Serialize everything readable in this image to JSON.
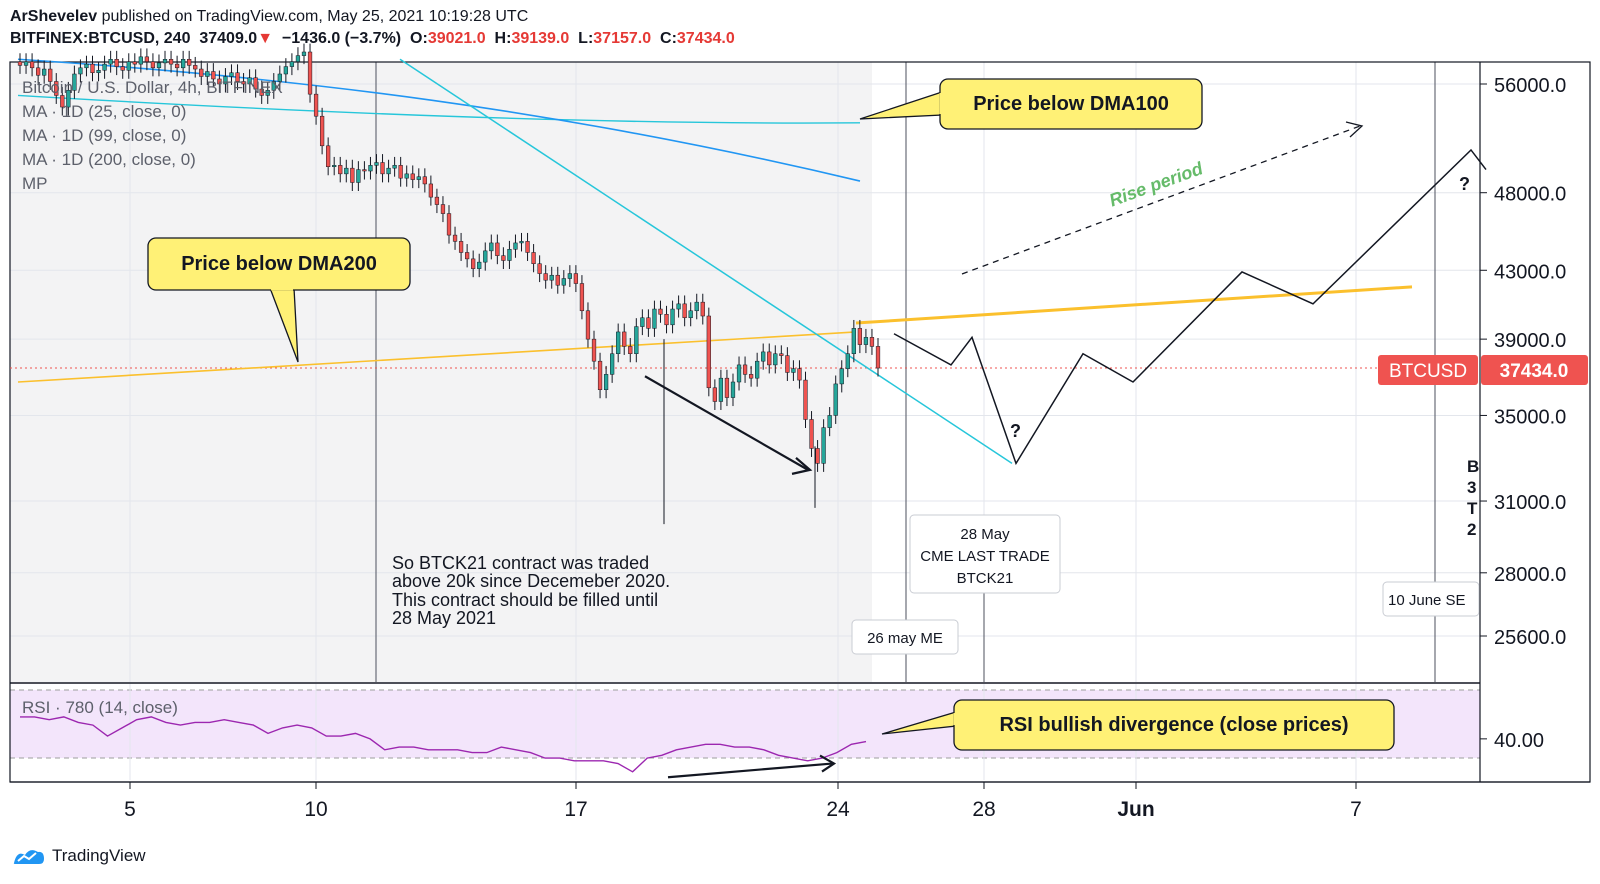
{
  "header": {
    "author": "ArShevelev",
    "published_text": "published on TradingView.com, May 25, 2021 10:19:28 UTC",
    "symbol": "BITFINEX:BTCUSD, 240",
    "last": "37409.0",
    "change_arrow": "▼",
    "change": "−1436.0 (−3.7%)",
    "o_label": "O:",
    "o": "39021.0",
    "h_label": "H:",
    "h": "39139.0",
    "l_label": "L:",
    "l": "37157.0",
    "c_label": "C:",
    "c": "37434.0"
  },
  "legend": [
    "Bitcoin / U.S. Dollar, 4h, BITFINEX",
    "MA · 1D (25, close, 0)",
    "MA · 1D (99, close, 0)",
    "MA · 1D (200, close, 0)",
    "MP"
  ],
  "rsi_label": "RSI · 780 (14, close)",
  "annotations": {
    "dma100": "Price below DMA100",
    "dma200": "Price below DMA200",
    "rise": "Rise period",
    "rsi": "RSI bullish divergence (close prices)",
    "contract": [
      "So BTCK21 contract was traded",
      "above 20k since Decemeber 2020.",
      "This contract should be filled until",
      "28 May 2021"
    ],
    "q": "?",
    "cme_box": [
      "28 May",
      "CME LAST TRADE",
      "BTCK21"
    ],
    "me_box": "26 may ME",
    "june_box": "10 June SE",
    "edge_text": [
      "B",
      "3",
      "T",
      "2"
    ]
  },
  "price_tag": {
    "symbol": "BTCUSD",
    "value": "37434.0"
  },
  "footer": {
    "brand": "TradingView"
  },
  "colors": {
    "up": "#26a69a",
    "down": "#ef5350",
    "ma25": "#26c6da",
    "ma99": "#2196f3",
    "ma200": "#fbc02d",
    "rsi": "#9c27b0",
    "callout": "#fff176"
  },
  "chart_data": {
    "type": "candlestick",
    "price_axis": {
      "ticks": [
        56000,
        48000,
        43000,
        39000,
        35000,
        31000,
        28000,
        25600
      ],
      "tick_labels": [
        "56000.0",
        "48000.0",
        "43000.0",
        "39000.0",
        "35000.0",
        "31000.0",
        "28000.0",
        "25600.0"
      ]
    },
    "rsi_axis": {
      "ticks": [
        40
      ],
      "tick_labels": [
        "40.00"
      ]
    },
    "x_axis": {
      "tick_labels": [
        "5",
        "10",
        "17",
        "24",
        "28",
        "Jun",
        "7"
      ]
    },
    "closes": [
      57500,
      57800,
      57300,
      56700,
      57200,
      56200,
      55100,
      54200,
      55500,
      56800,
      57300,
      57600,
      56900,
      57100,
      57600,
      58000,
      57400,
      57100,
      57800,
      57600,
      58200,
      57800,
      57300,
      57700,
      58000,
      57600,
      57300,
      58000,
      57500,
      57200,
      56600,
      57000,
      56400,
      56000,
      56600,
      56900,
      56200,
      56000,
      56500,
      55600,
      55100,
      55500,
      56200,
      56800,
      57400,
      57800,
      58300,
      58600,
      55200,
      53500,
      51300,
      49800,
      49900,
      49300,
      49700,
      48700,
      49600,
      49500,
      49900,
      50100,
      49300,
      49700,
      49900,
      49000,
      49300,
      48900,
      49100,
      48600,
      47700,
      47200,
      46600,
      45200,
      44800,
      44100,
      43700,
      43100,
      43500,
      44200,
      44700,
      43900,
      43600,
      44300,
      44700,
      44800,
      44100,
      43400,
      42800,
      42400,
      42700,
      42100,
      42500,
      42800,
      42200,
      40600,
      39000,
      37800,
      36300,
      37100,
      38200,
      39400,
      38600,
      38200,
      39700,
      40200,
      39600,
      40700,
      40400,
      39800,
      40700,
      41000,
      40200,
      40600,
      41100,
      40300,
      36400,
      35700,
      36900,
      35900,
      36700,
      37600,
      37100,
      36900,
      37800,
      38300,
      37600,
      38200,
      38100,
      37200,
      37400,
      36800,
      34800,
      33400,
      32700,
      34400,
      35000,
      36600,
      37400,
      38200,
      39600,
      38700,
      39100,
      38600,
      37434
    ],
    "ma25_line_endpoints": [
      58000,
      54700
    ],
    "ma99_line_endpoints": [
      55100,
      50400
    ],
    "ma200_line_endpoints": [
      36700,
      39400
    ],
    "forecast_path": [
      39300,
      37600,
      39100,
      32700,
      38200,
      36700,
      42900,
      41000,
      51000,
      49600
    ],
    "rsi_values": [
      48,
      48,
      47,
      48,
      46,
      45,
      41,
      44,
      47,
      48,
      46,
      45,
      46,
      46,
      47,
      46,
      45,
      42,
      44,
      45,
      44,
      41,
      41,
      42,
      40,
      36,
      37,
      37,
      36,
      36,
      36,
      35,
      35,
      37,
      36,
      35,
      33,
      33,
      32,
      32,
      32,
      31,
      28,
      33,
      34,
      36,
      37,
      38,
      38,
      37,
      37,
      36,
      34,
      33,
      32,
      33,
      35,
      38,
      39
    ],
    "rsi_range": [
      25,
      60
    ]
  }
}
